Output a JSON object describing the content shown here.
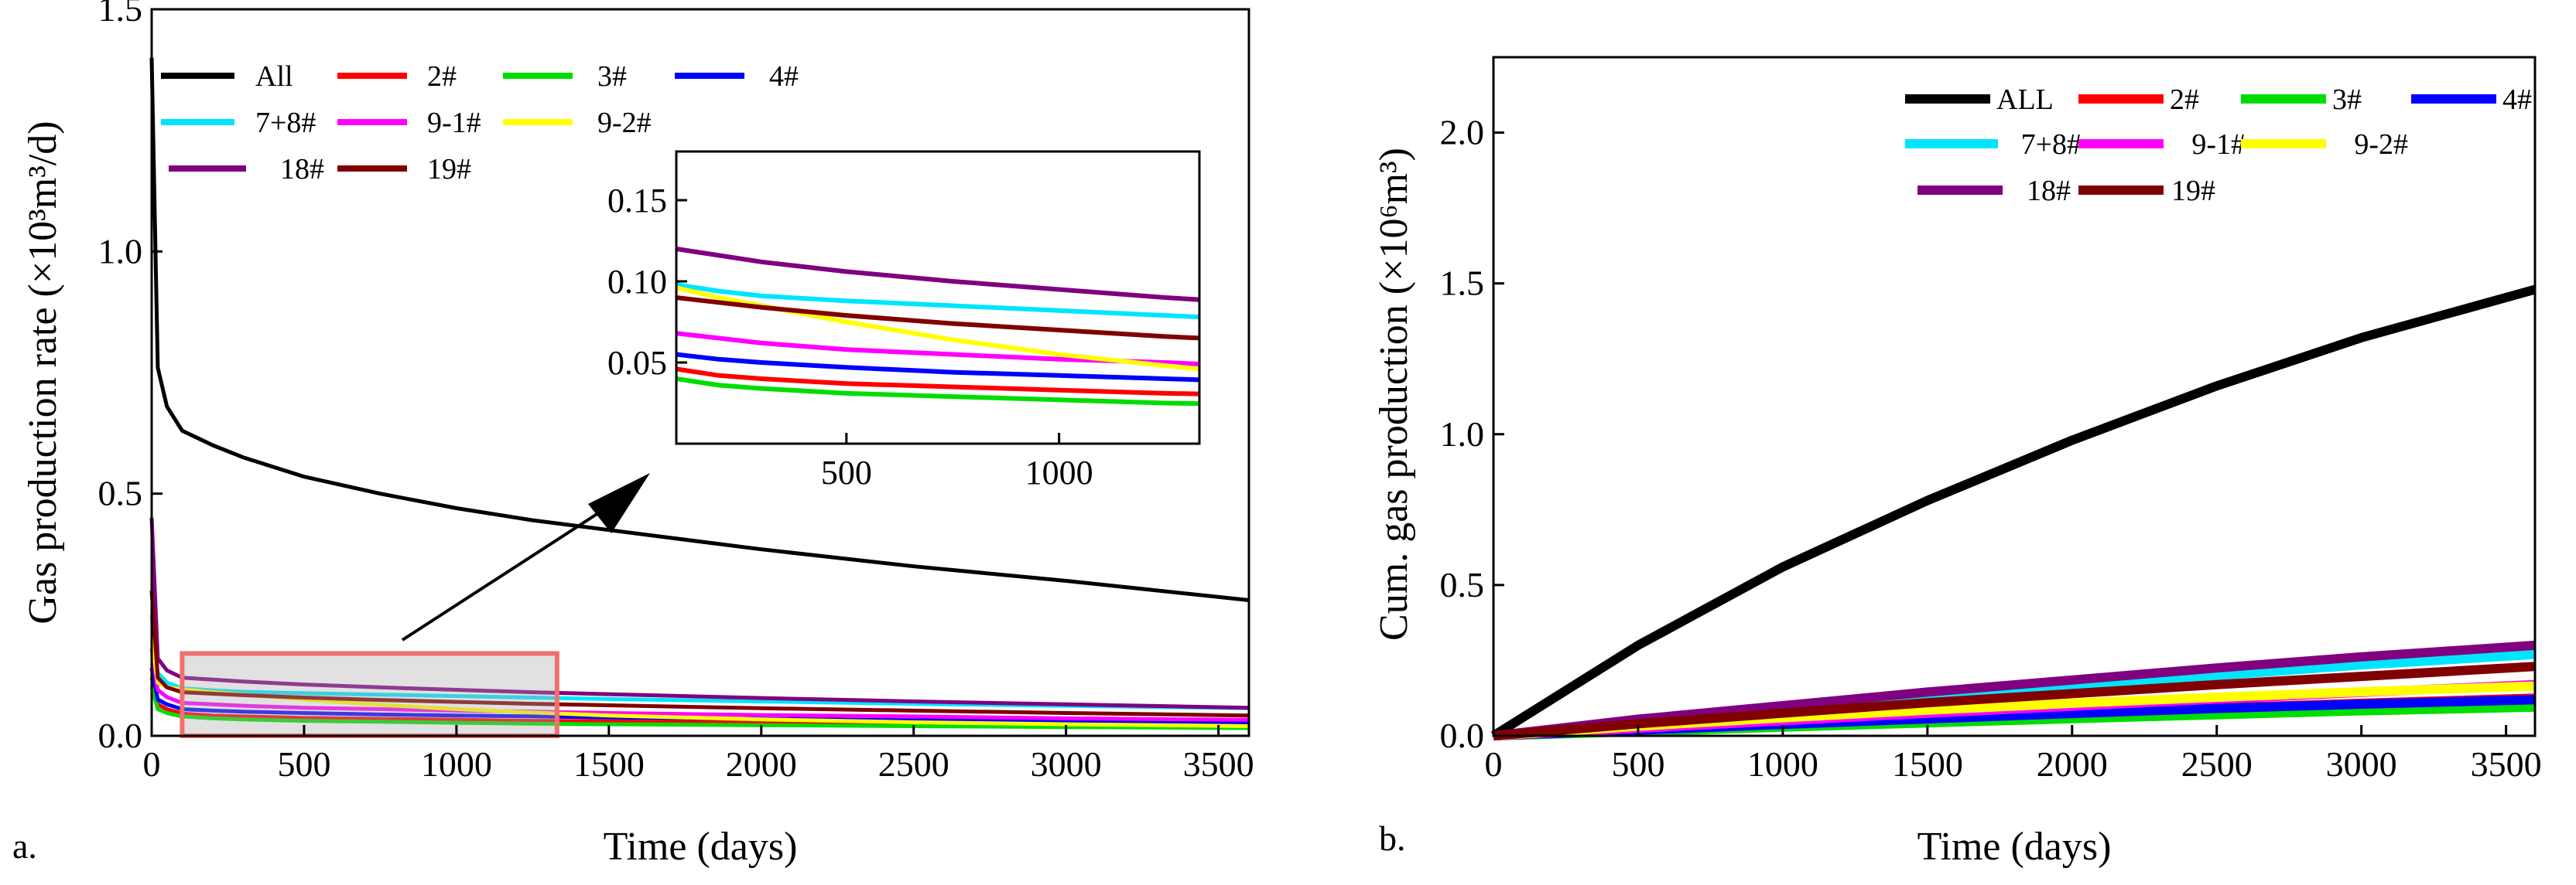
{
  "chart_data": [
    {
      "panel": "a.",
      "type": "line",
      "xlabel": "Time (days)",
      "ylabel": "Gas production rate (×10³m³/d)",
      "xlim": [
        0,
        3600
      ],
      "ylim": [
        0,
        1.5
      ],
      "xticks": [
        0,
        500,
        1000,
        1500,
        2000,
        2500,
        3000,
        3500
      ],
      "yticks": [
        0.0,
        0.5,
        1.0,
        1.5
      ],
      "ytick_labels": [
        "0.0",
        "0.5",
        "1.0",
        "1.5"
      ],
      "legend": {
        "position": "top-left"
      },
      "x": [
        0,
        20,
        50,
        100,
        200,
        300,
        500,
        750,
        1000,
        1250,
        1500,
        2000,
        2500,
        3000,
        3600
      ],
      "series": [
        {
          "name": "All",
          "color": "#000000",
          "values": [
            1.4,
            0.76,
            0.68,
            0.63,
            0.6,
            0.575,
            0.535,
            0.5,
            0.47,
            0.445,
            0.425,
            0.385,
            0.35,
            0.32,
            0.28
          ]
        },
        {
          "name": "2#",
          "color": "#ff0000",
          "values": [
            0.12,
            0.065,
            0.055,
            0.046,
            0.042,
            0.04,
            0.037,
            0.035,
            0.033,
            0.031,
            0.03,
            0.027,
            0.025,
            0.023,
            0.021
          ]
        },
        {
          "name": "3#",
          "color": "#00dd00",
          "values": [
            0.1,
            0.055,
            0.047,
            0.04,
            0.036,
            0.034,
            0.031,
            0.029,
            0.027,
            0.025,
            0.024,
            0.022,
            0.02,
            0.018,
            0.016
          ]
        },
        {
          "name": "4#",
          "color": "#0000ff",
          "values": [
            0.14,
            0.075,
            0.065,
            0.055,
            0.052,
            0.05,
            0.047,
            0.044,
            0.042,
            0.04,
            0.038,
            0.035,
            0.032,
            0.03,
            0.027
          ]
        },
        {
          "name": "7+8#",
          "color": "#00e5ff",
          "values": [
            0.25,
            0.13,
            0.11,
            0.098,
            0.094,
            0.091,
            0.088,
            0.085,
            0.082,
            0.079,
            0.076,
            0.071,
            0.066,
            0.062,
            0.057
          ]
        },
        {
          "name": "9-1#",
          "color": "#ff00ff",
          "values": [
            0.18,
            0.095,
            0.08,
            0.068,
            0.065,
            0.062,
            0.058,
            0.055,
            0.052,
            0.05,
            0.047,
            0.043,
            0.04,
            0.036,
            0.033
          ]
        },
        {
          "name": "9-2#",
          "color": "#ffff00",
          "values": [
            0.2,
            0.11,
            0.1,
            0.096,
            0.09,
            0.085,
            0.075,
            0.064,
            0.055,
            0.048,
            0.042,
            0.034,
            0.028,
            0.024,
            0.02
          ]
        },
        {
          "name": "18#",
          "color": "#800080",
          "values": [
            0.45,
            0.16,
            0.135,
            0.12,
            0.116,
            0.112,
            0.106,
            0.1,
            0.095,
            0.09,
            0.086,
            0.078,
            0.071,
            0.065,
            0.058
          ]
        },
        {
          "name": "19#",
          "color": "#800000",
          "values": [
            0.3,
            0.12,
            0.1,
            0.09,
            0.087,
            0.084,
            0.079,
            0.074,
            0.07,
            0.066,
            0.063,
            0.057,
            0.052,
            0.047,
            0.042
          ]
        }
      ],
      "highlight_box": {
        "x": [
          100,
          1330
        ],
        "y": [
          0,
          0.17
        ]
      },
      "inset": {
        "xlim": [
          100,
          1330
        ],
        "ylim": [
          0.0,
          0.18
        ],
        "xticks": [
          500,
          1000
        ],
        "yticks": [
          0.05,
          0.1,
          0.15
        ],
        "ytick_labels": [
          "0.05",
          "0.10",
          "0.15"
        ]
      }
    },
    {
      "panel": "b.",
      "type": "line",
      "xlabel": "Time (days)",
      "ylabel": "Cum. gas production (×10⁶m³)",
      "xlim": [
        0,
        3600
      ],
      "ylim": [
        0,
        2.25
      ],
      "xticks": [
        0,
        500,
        1000,
        1500,
        2000,
        2500,
        3000,
        3500
      ],
      "yticks": [
        0.0,
        0.5,
        1.0,
        1.5,
        2.0
      ],
      "ytick_labels": [
        "0.0",
        "0.5",
        "1.0",
        "1.5",
        "2.0"
      ],
      "legend": {
        "position": "top-right"
      },
      "x": [
        0,
        500,
        1000,
        1500,
        2000,
        2500,
        3000,
        3600
      ],
      "series": [
        {
          "name": "ALL",
          "color": "#000000",
          "values": [
            0,
            0.3,
            0.56,
            0.78,
            0.98,
            1.16,
            1.32,
            1.48
          ]
        },
        {
          "name": "2#",
          "color": "#ff0000",
          "values": [
            0,
            0.02,
            0.04,
            0.058,
            0.076,
            0.093,
            0.108,
            0.125
          ]
        },
        {
          "name": "3#",
          "color": "#00dd00",
          "values": [
            0,
            0.014,
            0.029,
            0.043,
            0.057,
            0.07,
            0.083,
            0.095
          ]
        },
        {
          "name": "4#",
          "color": "#0000ff",
          "values": [
            0,
            0.019,
            0.038,
            0.056,
            0.074,
            0.091,
            0.105,
            0.12
          ]
        },
        {
          "name": "7+8#",
          "color": "#00e5ff",
          "values": [
            0,
            0.045,
            0.085,
            0.125,
            0.165,
            0.2,
            0.235,
            0.27
          ]
        },
        {
          "name": "9-1#",
          "color": "#ff00ff",
          "values": [
            0,
            0.025,
            0.05,
            0.075,
            0.098,
            0.122,
            0.144,
            0.17
          ]
        },
        {
          "name": "9-2#",
          "color": "#ffff00",
          "values": [
            0,
            0.032,
            0.06,
            0.085,
            0.108,
            0.128,
            0.146,
            0.165
          ]
        },
        {
          "name": "18#",
          "color": "#800080",
          "values": [
            0,
            0.055,
            0.1,
            0.145,
            0.185,
            0.225,
            0.262,
            0.3
          ]
        },
        {
          "name": "19#",
          "color": "#800000",
          "values": [
            0,
            0.04,
            0.075,
            0.11,
            0.14,
            0.17,
            0.197,
            0.23
          ]
        }
      ]
    }
  ]
}
